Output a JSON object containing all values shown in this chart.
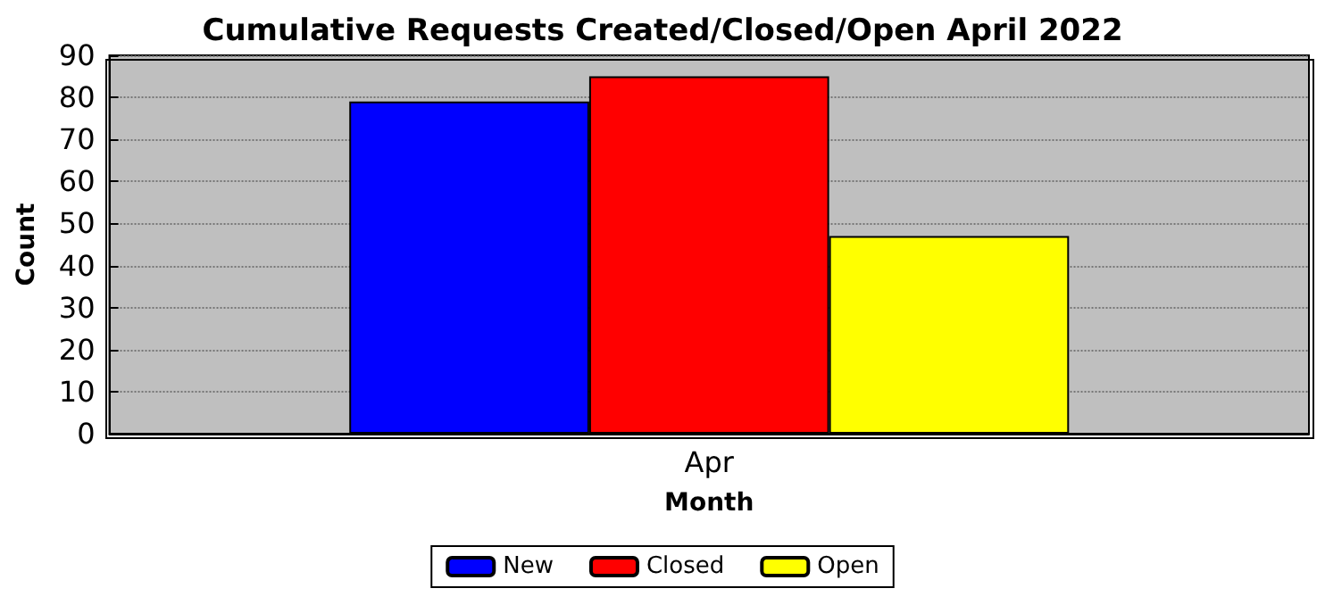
{
  "chart_data": {
    "type": "bar",
    "title": "Cumulative Requests Created/Closed/Open April 2022",
    "xlabel": "Month",
    "ylabel": "Count",
    "categories": [
      "Apr"
    ],
    "series": [
      {
        "name": "New",
        "color": "#0000ff",
        "values": [
          79
        ]
      },
      {
        "name": "Closed",
        "color": "#ff0000",
        "values": [
          85
        ]
      },
      {
        "name": "Open",
        "color": "#ffff00",
        "values": [
          47
        ]
      }
    ],
    "ylim": [
      0,
      90
    ],
    "yticks": [
      0,
      10,
      20,
      30,
      40,
      50,
      60,
      70,
      80,
      90
    ],
    "grid": "y",
    "legend": "bottom"
  }
}
